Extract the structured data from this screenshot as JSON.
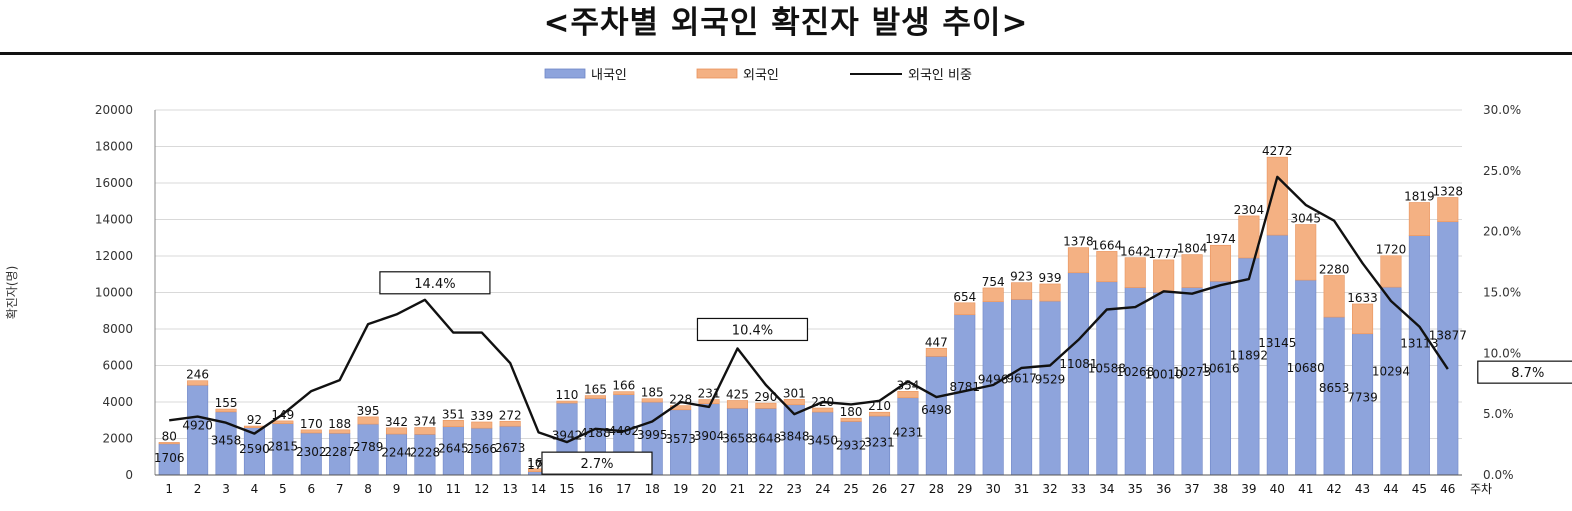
{
  "chart_data": {
    "type": "bar",
    "title": "<주차별 외국인 확진자 발생 추이>",
    "xlabel": "",
    "x_unit": "주차",
    "ylabel": "확진자(명)",
    "ylim": [
      0,
      20000
    ],
    "yticks": [
      "0",
      "2000",
      "4000",
      "6000",
      "8000",
      "10000",
      "12000",
      "14000",
      "16000",
      "18000",
      "20000"
    ],
    "y2lim": [
      0,
      30
    ],
    "y2ticks": [
      "0.0%",
      "5.0%",
      "10.0%",
      "15.0%",
      "20.0%",
      "25.0%",
      "30.0%"
    ],
    "grid": true,
    "legend_placement": "top-center",
    "categories": [
      "1",
      "2",
      "3",
      "4",
      "5",
      "6",
      "7",
      "8",
      "9",
      "10",
      "11",
      "12",
      "13",
      "14",
      "15",
      "16",
      "17",
      "18",
      "19",
      "20",
      "21",
      "22",
      "23",
      "24",
      "25",
      "26",
      "27",
      "28",
      "29",
      "30",
      "31",
      "32",
      "33",
      "34",
      "35",
      "36",
      "37",
      "38",
      "39",
      "40",
      "41",
      "42",
      "43",
      "44",
      "45",
      "46"
    ],
    "series": [
      {
        "name": "내국인",
        "kind": "bar-stacked",
        "color": "#8ea4dc",
        "values": [
          1706,
          4920,
          3458,
          2590,
          2815,
          2302,
          2287,
          2789,
          2244,
          2228,
          2645,
          2566,
          2673,
          179,
          3942,
          4188,
          4402,
          3995,
          3573,
          3904,
          3658,
          3648,
          3848,
          3450,
          2932,
          3231,
          4231,
          6498,
          8781,
          9496,
          9617,
          9529,
          11081,
          10588,
          10268,
          10010,
          10273,
          10616,
          11892,
          13145,
          10680,
          8653,
          7739,
          10294,
          13113,
          13877
        ]
      },
      {
        "name": "외국인",
        "kind": "bar-stacked",
        "color": "#f4b183",
        "values": [
          80,
          246,
          155,
          92,
          149,
          170,
          188,
          395,
          342,
          374,
          351,
          339,
          272,
          162,
          110,
          165,
          166,
          185,
          228,
          231,
          425,
          290,
          301,
          220,
          180,
          210,
          354,
          447,
          654,
          754,
          923,
          939,
          1378,
          1664,
          1642,
          1777,
          1804,
          1974,
          2304,
          4272,
          3045,
          2280,
          1633,
          1720,
          1819,
          1328
        ]
      },
      {
        "name": "외국인 비중",
        "kind": "line",
        "axis": "right",
        "color": "#111111",
        "values": [
          4.5,
          4.8,
          4.3,
          3.4,
          5.0,
          6.9,
          7.8,
          12.4,
          13.2,
          14.4,
          11.7,
          11.7,
          9.2,
          3.5,
          2.7,
          3.8,
          3.6,
          4.4,
          6.0,
          5.6,
          10.4,
          7.4,
          5.0,
          6.0,
          5.8,
          6.1,
          7.7,
          6.4,
          6.9,
          7.4,
          8.8,
          9.0,
          11.1,
          13.6,
          13.8,
          15.1,
          14.9,
          15.6,
          16.1,
          24.5,
          22.2,
          20.9,
          17.4,
          14.3,
          12.2,
          8.7
        ]
      }
    ],
    "annotations": [
      {
        "category": "10",
        "text": "14.4%"
      },
      {
        "category": "15",
        "text": "2.7%"
      },
      {
        "category": "21",
        "text": "10.4%"
      },
      {
        "category": "46",
        "text": "8.7%"
      }
    ]
  }
}
